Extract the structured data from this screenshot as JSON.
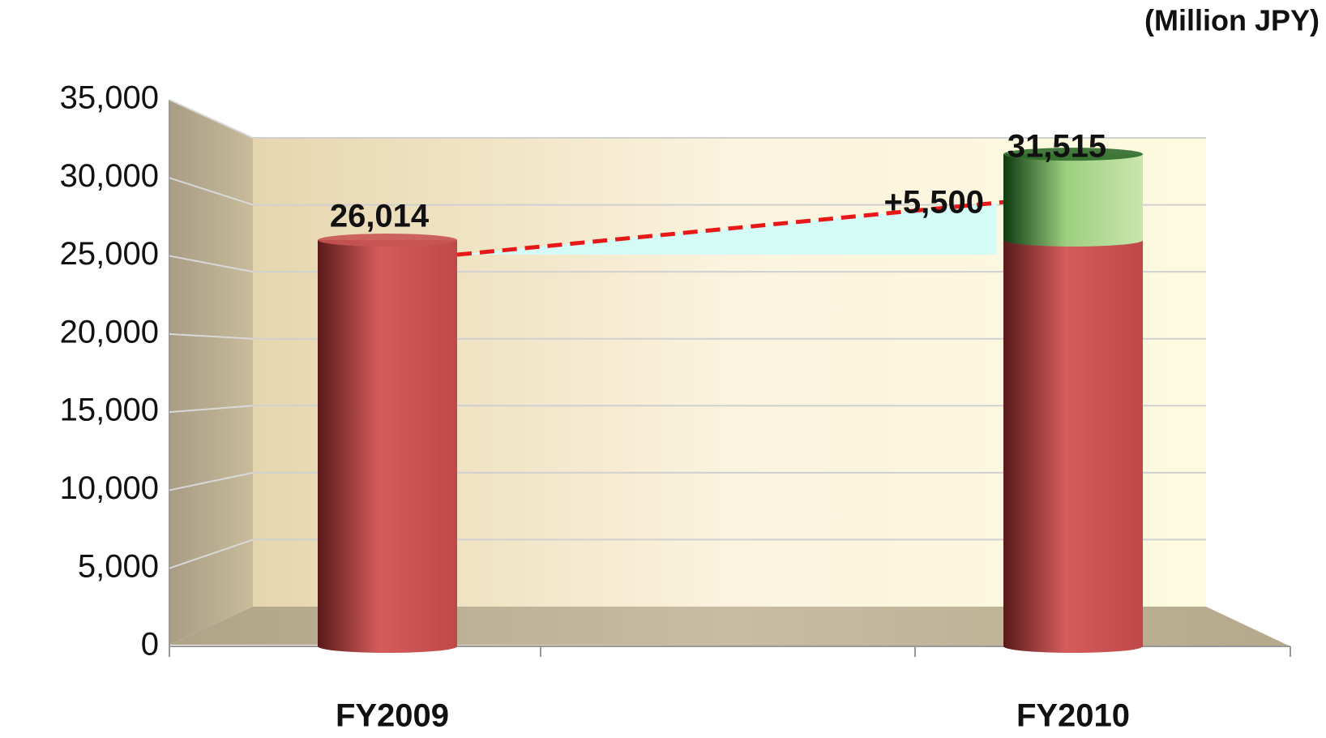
{
  "chart_data": {
    "type": "bar",
    "stacked": true,
    "unit": "(Million JPY)",
    "categories": [
      "FY2009",
      "FY2010"
    ],
    "series": [
      {
        "color": "#d45a5a",
        "values": [
          26014,
          26015
        ]
      },
      {
        "color": "#5a9a3a",
        "values": [
          null,
          5500
        ],
        "value_labels": [
          null,
          "+5,500"
        ]
      }
    ],
    "totals": [
      26014,
      31515
    ],
    "total_labels": [
      "26,014",
      "31,515"
    ],
    "ylim": [
      0,
      35000
    ],
    "yticks": [
      0,
      {
        "value": 5000,
        "label": "5,000"
      },
      {
        "value": 10000,
        "label": "10,000"
      },
      {
        "value": 15000,
        "label": "15,000"
      },
      {
        "value": 20000,
        "label": "20,000"
      },
      {
        "value": 25000,
        "label": "25,000"
      },
      {
        "value": 30000,
        "label": "30,000"
      },
      {
        "value": 35000,
        "label": "35,000"
      }
    ],
    "grid": true
  }
}
